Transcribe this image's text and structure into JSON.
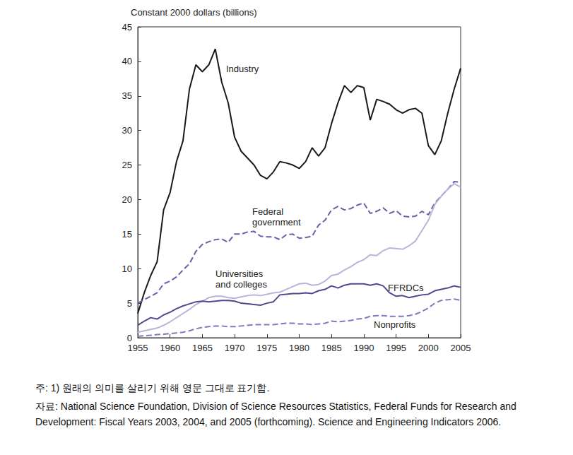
{
  "chart_data": {
    "type": "line",
    "y_label": "Constant 2000 dollars (billions)",
    "x": [
      1955,
      1956,
      1957,
      1958,
      1959,
      1960,
      1961,
      1962,
      1963,
      1964,
      1965,
      1966,
      1967,
      1968,
      1969,
      1970,
      1971,
      1972,
      1973,
      1974,
      1975,
      1976,
      1977,
      1978,
      1979,
      1980,
      1981,
      1982,
      1983,
      1984,
      1985,
      1986,
      1987,
      1988,
      1989,
      1990,
      1991,
      1992,
      1993,
      1994,
      1995,
      1996,
      1997,
      1998,
      1999,
      2000,
      2001,
      2002,
      2003,
      2004,
      2005
    ],
    "xlim": [
      1955,
      2005
    ],
    "xticks": [
      1955,
      1960,
      1965,
      1970,
      1975,
      1980,
      1985,
      1990,
      1995,
      2000,
      2005
    ],
    "ylim": [
      0,
      45
    ],
    "yticks": [
      0,
      5,
      10,
      15,
      20,
      25,
      30,
      35,
      40,
      45
    ],
    "grid": false,
    "series": [
      {
        "name": "Industry",
        "color": "#1a1a1a",
        "line_style": "solid",
        "values": [
          3.5,
          6.5,
          9,
          11,
          18.5,
          21,
          25.5,
          28.5,
          36,
          39.5,
          38.5,
          39.5,
          41.8,
          37,
          34,
          29,
          27,
          26,
          25,
          23.5,
          23,
          24,
          25.5,
          25.3,
          25,
          24.5,
          25.5,
          27.5,
          26.3,
          27.5,
          31,
          34,
          36.5,
          35.5,
          36.5,
          36.2,
          31.5,
          34.5,
          34.2,
          33.8,
          33,
          32.5,
          33,
          33.2,
          32.5,
          27.8,
          26.5,
          28.5,
          32.5,
          36,
          39
        ]
      },
      {
        "name": "Federal government",
        "color": "#6a5fa8",
        "line_style": "dashed",
        "values": [
          5,
          5.5,
          6,
          6.5,
          7.8,
          8.2,
          8.8,
          9.8,
          10.7,
          12.5,
          13.5,
          13.9,
          14.2,
          14.3,
          13.8,
          15,
          15,
          15.3,
          15.4,
          14.7,
          14.6,
          14.6,
          14.2,
          14.9,
          15,
          14.4,
          14.5,
          14.7,
          16.3,
          17,
          18.5,
          19,
          18.5,
          18.7,
          19.2,
          19.5,
          18,
          18.3,
          18.8,
          18,
          18.4,
          17.6,
          17.5,
          17.6,
          18.3,
          17.8,
          19.5,
          20.5,
          21.5,
          22.6,
          22.5
        ]
      },
      {
        "name": "Universities and colleges",
        "color": "#bab4da",
        "line_style": "solid",
        "values": [
          0.8,
          1,
          1.2,
          1.4,
          1.8,
          2.3,
          2.9,
          3.5,
          4.1,
          4.8,
          5.3,
          5.8,
          6,
          6,
          5.8,
          5.7,
          5.9,
          6.1,
          6.2,
          6.1,
          6.3,
          6.5,
          6.6,
          7,
          7.4,
          7.8,
          7.9,
          7.6,
          7.7,
          8.2,
          9,
          9.2,
          9.8,
          10.3,
          10.9,
          11.3,
          12,
          11.9,
          12.6,
          13,
          12.9,
          12.8,
          13.3,
          14,
          15.5,
          17,
          19.3,
          20.5,
          21.5,
          22.3,
          21.8
        ]
      },
      {
        "name": "FFRDCs",
        "color": "#54478f",
        "line_style": "solid",
        "values": [
          1.8,
          2.4,
          2.9,
          2.7,
          3.3,
          3.7,
          4.2,
          4.6,
          4.9,
          5.2,
          5.3,
          5.2,
          5.3,
          5.4,
          5.4,
          5.3,
          5,
          4.9,
          4.8,
          4.7,
          5,
          5.2,
          6.2,
          6.3,
          6.4,
          6.4,
          6.5,
          6.4,
          6.8,
          7,
          7.5,
          7.2,
          7.6,
          7.8,
          7.8,
          7.8,
          7.6,
          7.8,
          7.5,
          6.5,
          6,
          6.1,
          5.8,
          6,
          6.2,
          6.3,
          6.8,
          7,
          7.2,
          7.5,
          7.3
        ]
      },
      {
        "name": "Nonprofits",
        "color": "#8377bd",
        "line_style": "dashed",
        "values": [
          0.2,
          0.3,
          0.35,
          0.45,
          0.5,
          0.6,
          0.7,
          0.8,
          1,
          1.3,
          1.5,
          1.6,
          1.7,
          1.7,
          1.6,
          1.6,
          1.7,
          1.8,
          1.9,
          1.9,
          1.9,
          1.9,
          2,
          2.1,
          2.1,
          2,
          2,
          1.9,
          2,
          2.1,
          2.4,
          2.3,
          2.4,
          2.5,
          2.7,
          2.8,
          3.1,
          3.2,
          3.2,
          3.1,
          3.1,
          3.1,
          3.2,
          3.4,
          3.8,
          4.3,
          5,
          5.4,
          5.5,
          5.6,
          5.4
        ]
      }
    ],
    "annotations": [
      "주: 1) 원래의 의미를 살리기 위해 영문 그대로 표기함.",
      "자료: National Science Foundation, Division of Science Resources Statistics, Federal Funds for Research and Development: Fiscal Years 2003, 2004, and 2005 (forthcoming). Science and Engineering Indicators 2006."
    ]
  }
}
